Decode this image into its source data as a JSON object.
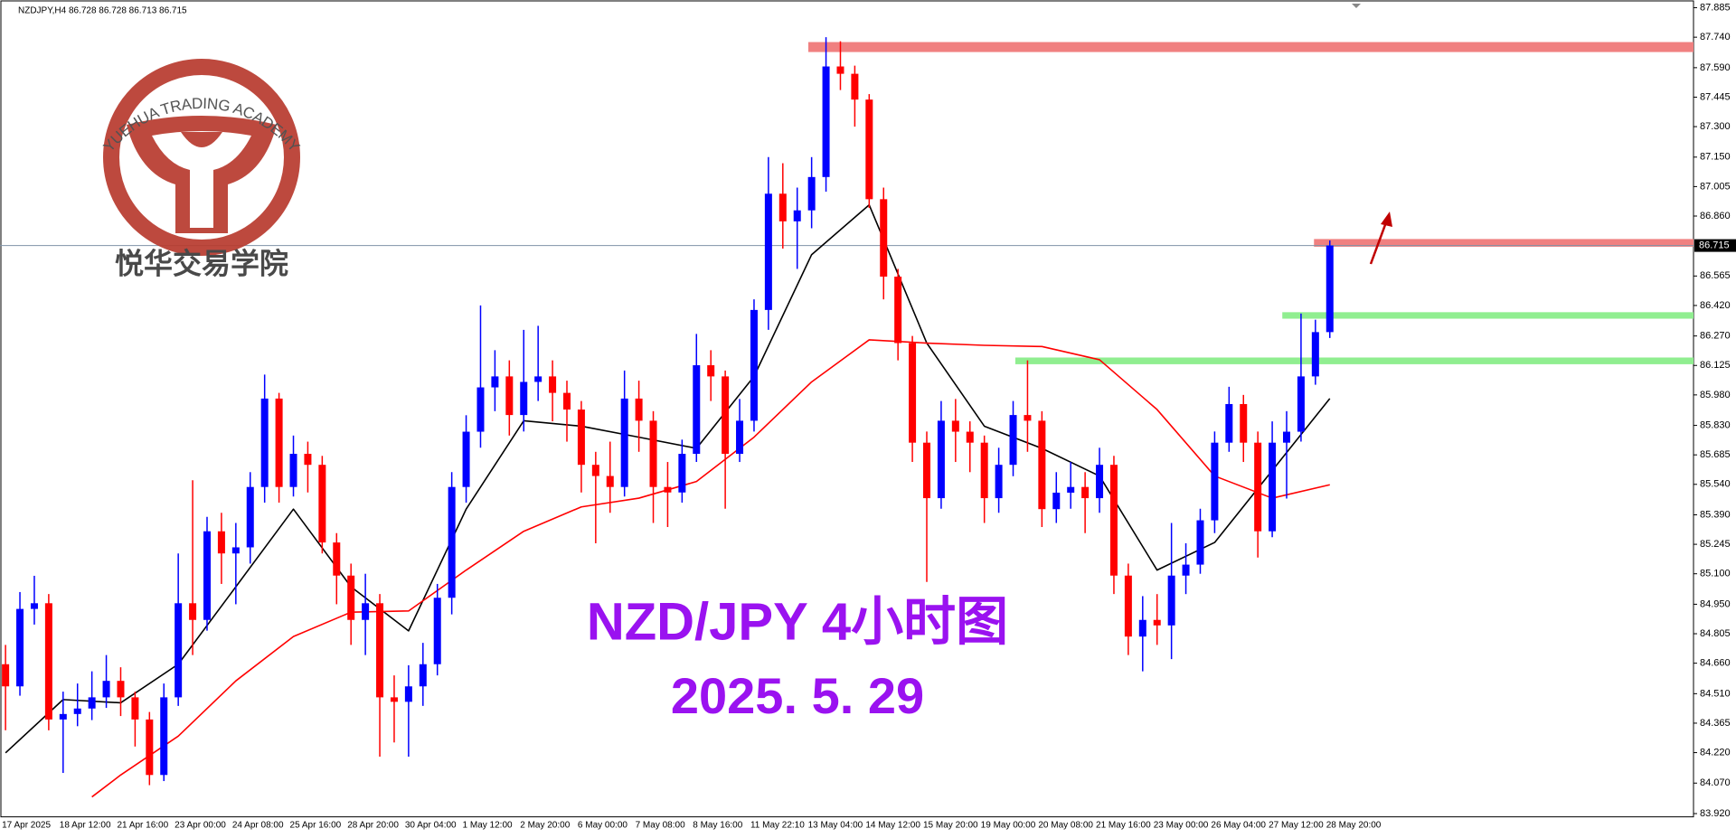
{
  "chart_data": {
    "type": "candlestick",
    "info": "NZDJPY,H4  86.728 86.728 86.713 86.715",
    "title": "NZD/JPY 4小时图",
    "subtitle": "2025. 5. 29",
    "logo": {
      "en": "YUEHUA TRADING ACADEMY",
      "zh": "悦华交易学院"
    },
    "up_color": "#0000ff",
    "down_color": "#ff0000",
    "categories": [
      "17 Apr 2025",
      null,
      null,
      null,
      "18 Apr 12:00",
      null,
      null,
      null,
      "21 Apr 16:00",
      null,
      null,
      null,
      "23 Apr 00:00",
      null,
      null,
      null,
      "24 Apr 08:00",
      null,
      null,
      null,
      "25 Apr 16:00",
      null,
      null,
      null,
      "28 Apr 20:00",
      null,
      null,
      null,
      "30 Apr 04:00",
      null,
      null,
      null,
      "1 May 12:00",
      null,
      null,
      null,
      "2 May 20:00",
      null,
      null,
      null,
      "6 May 00:00",
      null,
      null,
      null,
      "7 May 08:00",
      null,
      null,
      null,
      "8 May 16:00",
      null,
      null,
      null,
      "11 May 22:10",
      null,
      null,
      null,
      "13 May 04:00",
      null,
      null,
      null,
      "14 May 12:00",
      null,
      null,
      null,
      "15 May 20:00",
      null,
      null,
      null,
      "19 May 00:00",
      null,
      null,
      null,
      "20 May 08:00",
      null,
      null,
      null,
      "21 May 16:00",
      null,
      null,
      null,
      "23 May 00:00",
      null,
      null,
      null,
      "26 May 04:00",
      null,
      null,
      null,
      "27 May 12:00",
      null,
      null,
      null,
      "28 May 20:00"
    ],
    "open": [
      84.655,
      84.546,
      84.927,
      84.955,
      84.383,
      84.41,
      84.437,
      84.492,
      84.573,
      84.492,
      84.383,
      84.11,
      84.492,
      84.955,
      84.873,
      85.309,
      85.2,
      85.23,
      85.527,
      85.962,
      85.527,
      85.69,
      85.636,
      85.254,
      85.091,
      84.873,
      84.955,
      84.492,
      84.47,
      84.546,
      84.655,
      84.982,
      85.527,
      85.799,
      86.017,
      86.071,
      85.881,
      86.044,
      86.071,
      85.99,
      85.908,
      85.636,
      85.581,
      85.527,
      85.962,
      85.853,
      85.527,
      85.5,
      85.69,
      86.126,
      86.071,
      85.69,
      85.853,
      86.398,
      86.97,
      86.834,
      86.888,
      87.052,
      87.596,
      87.56,
      87.433,
      86.943,
      86.562,
      86.235,
      85.745,
      85.472,
      85.853,
      85.799,
      85.745,
      85.472,
      85.636,
      85.881,
      85.853,
      85.418,
      85.499,
      85.527,
      85.472,
      85.636,
      85.091,
      84.791,
      84.873,
      84.846,
      85.091,
      85.145,
      85.363,
      85.745,
      85.935,
      85.745,
      85.309,
      85.745,
      85.799,
      86.071,
      86.289
    ],
    "high": [
      84.75,
      85.01,
      85.09,
      85.0,
      84.52,
      84.56,
      84.62,
      84.7,
      84.64,
      84.52,
      84.42,
      84.56,
      85.2,
      85.56,
      85.38,
      85.4,
      85.35,
      85.6,
      86.08,
      85.99,
      85.78,
      85.75,
      85.68,
      85.3,
      85.15,
      85.1,
      85.0,
      84.6,
      84.65,
      84.76,
      85.05,
      85.6,
      85.88,
      86.42,
      86.2,
      86.15,
      86.3,
      86.32,
      86.15,
      86.05,
      85.95,
      85.7,
      85.75,
      86.1,
      86.05,
      85.9,
      85.65,
      85.76,
      86.28,
      86.2,
      86.1,
      85.96,
      86.45,
      87.15,
      87.12,
      87.0,
      87.15,
      87.74,
      87.72,
      87.6,
      87.46,
      87.0,
      86.6,
      86.27,
      85.8,
      85.95,
      85.96,
      85.85,
      85.78,
      85.72,
      85.95,
      86.15,
      85.9,
      85.6,
      85.65,
      85.6,
      85.72,
      85.68,
      85.15,
      84.99,
      85.0,
      85.35,
      85.25,
      85.42,
      85.8,
      86.02,
      85.98,
      85.8,
      85.85,
      85.9,
      86.38,
      86.35,
      86.74
    ],
    "low": [
      84.33,
      84.5,
      84.85,
      84.33,
      84.12,
      84.35,
      84.38,
      84.44,
      84.4,
      84.25,
      84.06,
      84.08,
      84.45,
      84.7,
      84.82,
      85.05,
      84.95,
      85.15,
      85.45,
      85.45,
      85.48,
      85.5,
      85.2,
      84.95,
      84.75,
      84.7,
      84.2,
      84.27,
      84.2,
      84.45,
      84.6,
      84.9,
      85.45,
      85.72,
      85.9,
      85.78,
      85.8,
      85.95,
      85.85,
      85.75,
      85.5,
      85.25,
      85.4,
      85.48,
      85.7,
      85.35,
      85.33,
      85.45,
      85.65,
      85.95,
      85.42,
      85.65,
      85.8,
      86.3,
      86.7,
      86.6,
      86.8,
      86.98,
      87.48,
      87.3,
      86.9,
      86.45,
      86.15,
      85.65,
      85.06,
      85.42,
      85.65,
      85.6,
      85.35,
      85.4,
      85.58,
      85.7,
      85.33,
      85.35,
      85.42,
      85.3,
      85.4,
      85.0,
      84.7,
      84.62,
      84.75,
      84.68,
      85.0,
      85.1,
      85.3,
      85.7,
      85.65,
      85.18,
      85.28,
      85.47,
      85.75,
      86.03,
      86.26
    ],
    "close": [
      84.546,
      84.927,
      84.955,
      84.383,
      84.41,
      84.437,
      84.492,
      84.573,
      84.492,
      84.383,
      84.11,
      84.492,
      84.955,
      84.873,
      85.309,
      85.2,
      85.23,
      85.527,
      85.962,
      85.527,
      85.69,
      85.636,
      85.254,
      85.091,
      84.873,
      84.955,
      84.492,
      84.47,
      84.546,
      84.655,
      84.982,
      85.527,
      85.799,
      86.017,
      86.071,
      85.881,
      86.044,
      86.071,
      85.99,
      85.908,
      85.636,
      85.581,
      85.527,
      85.962,
      85.853,
      85.527,
      85.5,
      85.69,
      86.126,
      86.071,
      85.69,
      85.853,
      86.398,
      86.97,
      86.834,
      86.888,
      87.052,
      87.596,
      87.56,
      87.433,
      86.943,
      86.562,
      86.235,
      85.745,
      85.472,
      85.853,
      85.799,
      85.745,
      85.472,
      85.636,
      85.881,
      85.853,
      85.418,
      85.499,
      85.527,
      85.472,
      85.636,
      85.091,
      84.791,
      84.873,
      84.846,
      85.091,
      85.145,
      85.363,
      85.745,
      85.935,
      85.745,
      85.309,
      85.745,
      85.799,
      86.071,
      86.289,
      86.715
    ],
    "series": [
      {
        "color": "#000000",
        "x": [
          0,
          4,
          8,
          12,
          16,
          20,
          24,
          28,
          32,
          36,
          40,
          44,
          48,
          52,
          56,
          60,
          64,
          68,
          72,
          76,
          80,
          84,
          88,
          92
        ],
        "values": [
          84.219,
          84.481,
          84.465,
          84.655,
          85.036,
          85.418,
          85.036,
          84.819,
          85.418,
          85.853,
          85.826,
          85.772,
          85.717,
          86.071,
          86.67,
          86.915,
          86.235,
          85.826,
          85.717,
          85.581,
          85.118,
          85.254,
          85.608,
          85.962
        ]
      },
      {
        "color": "#ff0000",
        "x": [
          6,
          8,
          12,
          16,
          20,
          24,
          28,
          32,
          36,
          40,
          44,
          48,
          52,
          56,
          60,
          64,
          68,
          72,
          76,
          80,
          84,
          88,
          92
        ],
        "values": [
          84.002,
          84.11,
          84.301,
          84.573,
          84.791,
          84.911,
          84.917,
          85.118,
          85.309,
          85.429,
          85.472,
          85.554,
          85.772,
          86.044,
          86.251,
          86.235,
          86.224,
          86.218,
          86.153,
          85.908,
          85.581,
          85.472,
          85.538
        ]
      }
    ],
    "zones": [
      {
        "color": "#f08080",
        "from": 55.77,
        "low": 87.667,
        "high": 87.716
      },
      {
        "color": "#f08080",
        "from": 90.9,
        "low": 86.709,
        "high": 86.747
      },
      {
        "color": "#90ee90",
        "from": 88.7,
        "low": 86.355,
        "high": 86.387
      },
      {
        "color": "#90ee90",
        "from": 70.15,
        "low": 86.131,
        "high": 86.164
      }
    ],
    "current_price": 86.715,
    "current_price_color": "#7f93a8",
    "ylim": [
      83.904,
      87.907
    ],
    "yticks": [
      87.885,
      {
        "value": 87.74,
        "label": "87.740"
      },
      {
        "value": 87.59,
        "label": "87.590"
      },
      87.445,
      {
        "value": 87.3,
        "label": "87.300"
      },
      {
        "value": 87.15,
        "label": "87.150"
      },
      87.005,
      {
        "value": 86.86,
        "label": "86.860"
      },
      86.565,
      {
        "value": 86.42,
        "label": "86.420"
      },
      {
        "value": 86.27,
        "label": "86.270"
      },
      86.125,
      {
        "value": 85.98,
        "label": "85.980"
      },
      {
        "value": 85.83,
        "label": "85.830"
      },
      85.685,
      {
        "value": 85.54,
        "label": "85.540"
      },
      {
        "value": 85.39,
        "label": "85.390"
      },
      85.245,
      {
        "value": 85.1,
        "label": "85.100"
      },
      {
        "value": 84.95,
        "label": "84.950"
      },
      84.805,
      {
        "value": 84.66,
        "label": "84.660"
      },
      {
        "value": 84.51,
        "label": "84.510"
      },
      84.365,
      {
        "value": 84.22,
        "label": "84.220"
      },
      {
        "value": 84.07,
        "label": "84.070"
      },
      {
        "value": 83.92,
        "label": "83.920"
      }
    ],
    "grid": false
  }
}
